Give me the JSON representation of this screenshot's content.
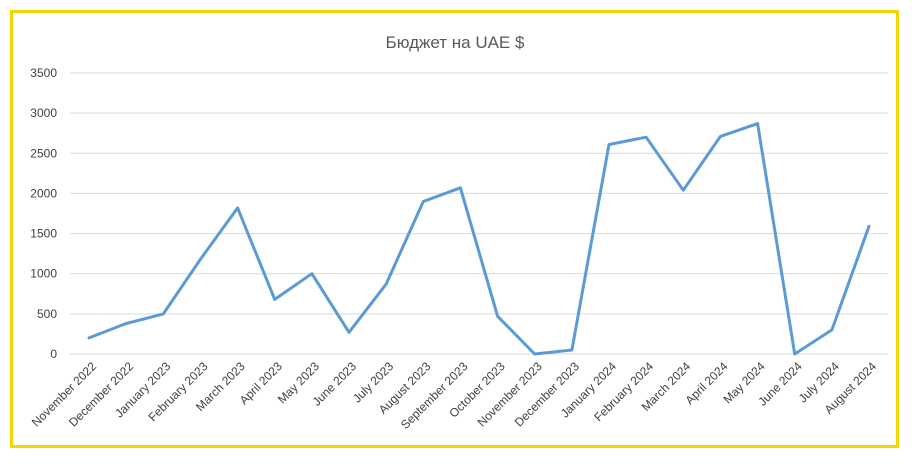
{
  "chart_data": {
    "type": "line",
    "title": "Бюджет на UAE $",
    "categories": [
      "November 2022",
      "December 2022",
      "January 2023",
      "February 2023",
      "March 2023",
      "April 2023",
      "May 2023",
      "June 2023",
      "July 2023",
      "August 2023",
      "September 2023",
      "October 2023",
      "November 2023",
      "December 2023",
      "January 2024",
      "February 2024",
      "March 2024",
      "April 2024",
      "May 2024",
      "June 2024",
      "July 2024",
      "August 2024"
    ],
    "series": [
      {
        "values": [
          200,
          380,
          500,
          1180,
          1820,
          680,
          1000,
          270,
          870,
          1900,
          2070,
          470,
          0,
          50,
          2610,
          2700,
          2040,
          2710,
          2870,
          0,
          300,
          1590
        ]
      }
    ],
    "yticks": [
      0,
      500,
      1000,
      1500,
      2000,
      2500,
      3000,
      3500
    ],
    "ylim": [
      0,
      3500
    ],
    "grid": true,
    "legend": "none",
    "colors": {
      "line": "#5b9bd5",
      "grid": "#d9d9d9",
      "border": "#f2d600"
    }
  }
}
